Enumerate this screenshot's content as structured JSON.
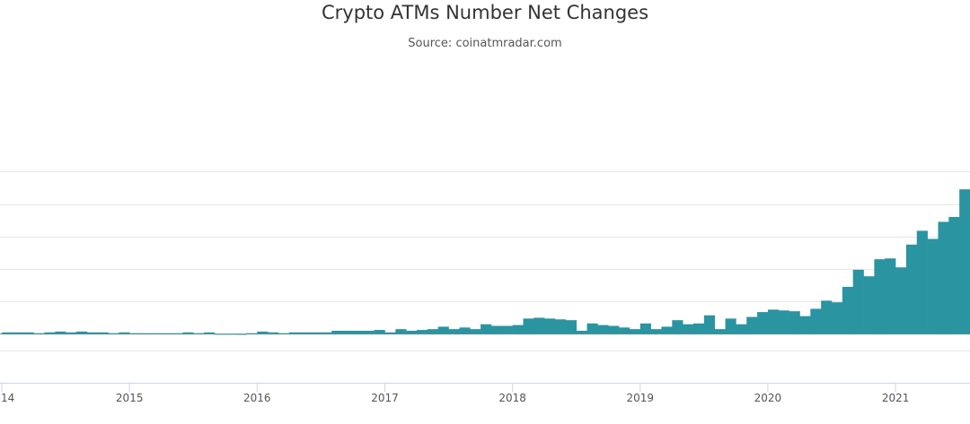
{
  "chart_data": {
    "type": "bar",
    "title": "Crypto ATMs Number Net Changes",
    "subtitle": "Source: coinatmradar.com",
    "xlabel": "",
    "ylabel": "",
    "x_tick_labels": [
      "14",
      "2015",
      "2016",
      "2017",
      "2018",
      "2019",
      "2020",
      "2021"
    ],
    "x_range": [
      "2014-01",
      "2021-08"
    ],
    "ylim": [
      -3,
      16.3
    ],
    "y_gridlines": [
      -1,
      0,
      2,
      4,
      6,
      8,
      10
    ],
    "grid": true,
    "legend": "none",
    "colors": {
      "bar": "#2a94a1",
      "grid": "#e6e6e6",
      "axis": "#ccd6eb",
      "zero_line": "#888888"
    },
    "months": [
      "2014-01",
      "2014-02",
      "2014-03",
      "2014-04",
      "2014-05",
      "2014-06",
      "2014-07",
      "2014-08",
      "2014-09",
      "2014-10",
      "2014-11",
      "2014-12",
      "2015-01",
      "2015-02",
      "2015-03",
      "2015-04",
      "2015-05",
      "2015-06",
      "2015-07",
      "2015-08",
      "2015-09",
      "2015-10",
      "2015-11",
      "2015-12",
      "2016-01",
      "2016-02",
      "2016-03",
      "2016-04",
      "2016-05",
      "2016-06",
      "2016-07",
      "2016-08",
      "2016-09",
      "2016-10",
      "2016-11",
      "2016-12",
      "2017-01",
      "2017-02",
      "2017-03",
      "2017-04",
      "2017-05",
      "2017-06",
      "2017-07",
      "2017-08",
      "2017-09",
      "2017-10",
      "2017-11",
      "2017-12",
      "2018-01",
      "2018-02",
      "2018-03",
      "2018-04",
      "2018-05",
      "2018-06",
      "2018-07",
      "2018-08",
      "2018-09",
      "2018-10",
      "2018-11",
      "2018-12",
      "2019-01",
      "2019-02",
      "2019-03",
      "2019-04",
      "2019-05",
      "2019-06",
      "2019-07",
      "2019-08",
      "2019-09",
      "2019-10",
      "2019-11",
      "2019-12",
      "2020-01",
      "2020-02",
      "2020-03",
      "2020-04",
      "2020-05",
      "2020-06",
      "2020-07",
      "2020-08",
      "2020-09",
      "2020-10",
      "2020-11",
      "2020-12",
      "2021-01",
      "2021-02",
      "2021-03",
      "2021-04",
      "2021-05",
      "2021-06",
      "2021-07"
    ],
    "values": [
      0.1,
      0.1,
      0.1,
      0.05,
      0.1,
      0.15,
      0.1,
      0.15,
      0.1,
      0.1,
      0.05,
      0.1,
      0.05,
      0.05,
      0.05,
      0.05,
      0.05,
      0.1,
      0.05,
      0.1,
      0.0,
      0.0,
      -0.05,
      0.05,
      0.15,
      0.1,
      0.05,
      0.1,
      0.1,
      0.1,
      0.1,
      0.2,
      0.2,
      0.2,
      0.2,
      0.25,
      0.1,
      0.3,
      0.2,
      0.25,
      0.3,
      0.45,
      0.3,
      0.4,
      0.3,
      0.6,
      0.5,
      0.5,
      0.55,
      0.95,
      1.0,
      0.95,
      0.9,
      0.85,
      0.2,
      0.65,
      0.55,
      0.5,
      0.4,
      0.3,
      0.65,
      0.3,
      0.45,
      0.85,
      0.6,
      0.65,
      1.15,
      0.3,
      0.95,
      0.6,
      1.05,
      1.35,
      1.5,
      1.45,
      1.4,
      1.1,
      1.55,
      2.05,
      1.95,
      2.9,
      3.95,
      3.55,
      4.6,
      4.65,
      4.1,
      5.5,
      6.35,
      5.85,
      6.9,
      7.2,
      8.9
    ]
  }
}
